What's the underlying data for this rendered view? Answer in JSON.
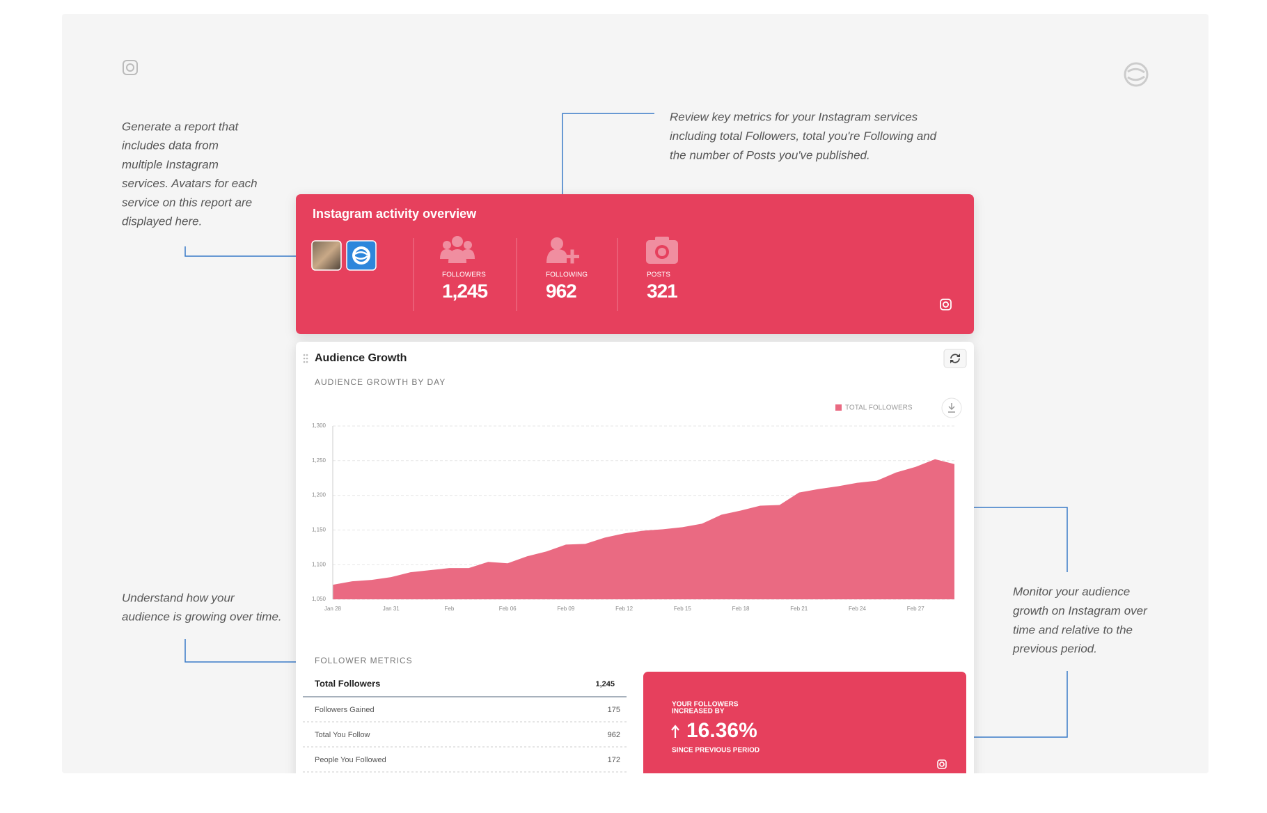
{
  "annotations": {
    "avatars": [
      "Generate a report that",
      "includes data from",
      "multiple Instagram",
      "services. Avatars for each",
      "service on this report are",
      "displayed here."
    ],
    "metrics": [
      "Review key metrics for your Instagram services",
      "including total Followers, total you're Following and",
      "the number of Posts you've published."
    ],
    "growth": [
      "Understand how your",
      "audience is growing over time."
    ],
    "monitor": [
      "Monitor your audience",
      "growth on Instagram over",
      "time and relative to the",
      "previous period."
    ]
  },
  "overview": {
    "title": "Instagram activity overview",
    "stats": [
      {
        "label": "FOLLOWERS",
        "value": "1,245"
      },
      {
        "label": "FOLLOWING",
        "value": "962"
      },
      {
        "label": "POSTS",
        "value": "321"
      }
    ]
  },
  "audience": {
    "title": "Audience Growth"
  },
  "chart_data": {
    "type": "area",
    "title": "AUDIENCE GROWTH BY DAY",
    "categories": [
      "Jan 28",
      null,
      null,
      "Jan 31",
      null,
      null,
      "Feb",
      null,
      null,
      "Feb 06",
      null,
      null,
      "Feb 09",
      null,
      null,
      "Feb 12",
      null,
      null,
      "Feb 15",
      null,
      null,
      "Feb 18",
      null,
      null,
      "Feb 21",
      null,
      null,
      "Feb 24",
      null,
      null,
      "Feb 27",
      null,
      null
    ],
    "series": [
      {
        "name": "TOTAL FOLLOWERS",
        "color": "#ea6a82",
        "values": [
          1071,
          1076,
          1078,
          1082,
          1089,
          1092,
          1095,
          1095,
          1104,
          1102,
          1112,
          1119,
          1129,
          1130,
          1139,
          1145,
          1149,
          1151,
          1154,
          1159,
          1172,
          1178,
          1185,
          1186,
          1204,
          1209,
          1213,
          1218,
          1221,
          1233,
          1241,
          1252,
          1245
        ]
      }
    ],
    "ylim": [
      1050,
      1300
    ],
    "yticks": [
      {
        "value": 1050,
        "label": "1,050"
      },
      {
        "value": 1100,
        "label": "1,100"
      },
      {
        "value": 1150,
        "label": "1,150"
      },
      {
        "value": 1200,
        "label": "1,200"
      },
      {
        "value": 1250,
        "label": "1,250"
      },
      {
        "value": 1300,
        "label": "1,300"
      }
    ],
    "grid": true,
    "legend": "top-right"
  },
  "metrics": {
    "title": "FOLLOWER METRICS",
    "rows": [
      [
        "Total Followers",
        "1,245"
      ],
      [
        "Followers Gained",
        "175"
      ],
      [
        "Total You Follow",
        "962"
      ],
      [
        "People You Followed",
        "172"
      ]
    ]
  },
  "callout": {
    "heading": [
      "YOUR FOLLOWERS",
      "INCREASED BY"
    ],
    "value": "16.36%",
    "footer": "SINCE PREVIOUS PERIOD"
  }
}
